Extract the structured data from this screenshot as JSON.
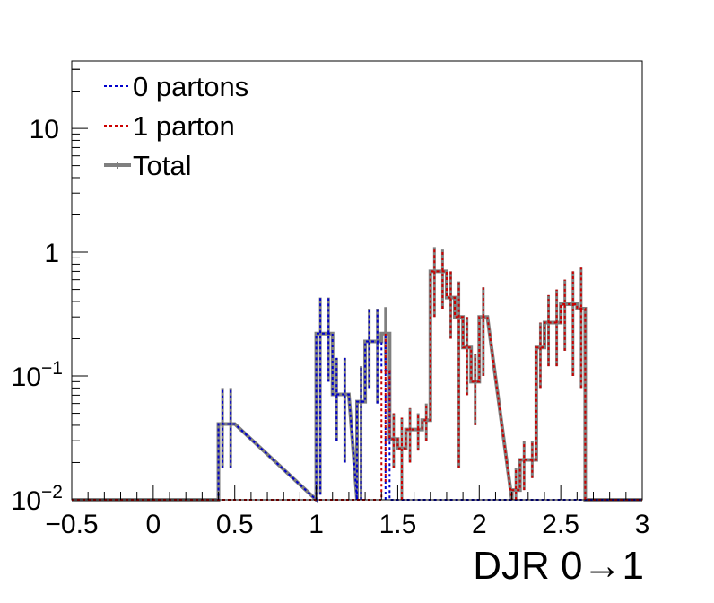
{
  "chart_data": {
    "type": "histogram",
    "xlabel": "DJR 0→1",
    "ylabel": "",
    "xlim": [
      -0.5,
      3.0
    ],
    "ylim": [
      0.01,
      35
    ],
    "yscale": "log",
    "bin_width": 0.05,
    "grid": false,
    "legend_placement": "top-left",
    "x_tick_labels": [
      {
        "value": -0.5,
        "text": "−0.5"
      },
      {
        "value": 0,
        "text": "0"
      },
      {
        "value": 0.5,
        "text": "0.5"
      },
      {
        "value": 1,
        "text": "1"
      },
      {
        "value": 1.5,
        "text": "1.5"
      },
      {
        "value": 2,
        "text": "2"
      },
      {
        "value": 2.5,
        "text": "2.5"
      },
      {
        "value": 3,
        "text": "3"
      }
    ],
    "y_tick_labels": [
      {
        "value": 0.01,
        "base": "10",
        "exp": "−2"
      },
      {
        "value": 0.1,
        "base": "10",
        "exp": "−1"
      },
      {
        "value": 1,
        "base": "1",
        "exp": ""
      },
      {
        "value": 10,
        "base": "10",
        "exp": ""
      }
    ],
    "series": [
      {
        "name": "0 partons",
        "color": "#0000cc",
        "style": "dotted",
        "bins": [
          {
            "x": [
              0.4,
              0.45
            ],
            "y": 0.041,
            "err": [
              0.018,
              0.08
            ]
          },
          {
            "x": [
              0.45,
              0.5
            ],
            "y": 0.041,
            "err": [
              0.018,
              0.08
            ]
          },
          {
            "x": [
              1.0,
              1.05
            ],
            "y": 0.22,
            "err": [
              0.011,
              0.43
            ]
          },
          {
            "x": [
              1.05,
              1.1
            ],
            "y": 0.22,
            "err": [
              0.09,
              0.43
            ]
          },
          {
            "x": [
              1.1,
              1.15
            ],
            "y": 0.071,
            "err": [
              0.03,
              0.14
            ]
          },
          {
            "x": [
              1.15,
              1.2
            ],
            "y": 0.071,
            "err": [
              0.02,
              0.14
            ]
          },
          {
            "x": [
              1.25,
              1.3
            ],
            "y": 0.062,
            "err": [
              0.01,
              0.12
            ]
          },
          {
            "x": [
              1.3,
              1.35
            ],
            "y": 0.19,
            "err": [
              0.08,
              0.35
            ]
          },
          {
            "x": [
              1.35,
              1.4
            ],
            "y": 0.19,
            "err": [
              0.06,
              0.35
            ]
          },
          {
            "x": [
              1.4,
              1.45
            ],
            "y": 0.11,
            "err": [
              0.01,
              0.22
            ]
          }
        ]
      },
      {
        "name": "1 parton",
        "color": "#cc0000",
        "style": "dotted",
        "bins": [
          {
            "x": [
              1.4,
              1.45
            ],
            "y": 0.11,
            "err": [
              0.014,
              0.23
            ]
          },
          {
            "x": [
              1.45,
              1.5
            ],
            "y": 0.031,
            "err": [
              0.018,
              0.05
            ]
          },
          {
            "x": [
              1.5,
              1.55
            ],
            "y": 0.026,
            "err": [
              0.01,
              0.046
            ]
          },
          {
            "x": [
              1.55,
              1.6
            ],
            "y": 0.037,
            "err": [
              0.02,
              0.055
            ]
          },
          {
            "x": [
              1.6,
              1.65
            ],
            "y": 0.037,
            "err": [
              0.025,
              0.05
            ]
          },
          {
            "x": [
              1.65,
              1.7
            ],
            "y": 0.044,
            "err": [
              0.03,
              0.06
            ]
          },
          {
            "x": [
              1.7,
              1.75
            ],
            "y": 0.7,
            "err": [
              0.3,
              1.1
            ]
          },
          {
            "x": [
              1.75,
              1.8
            ],
            "y": 0.7,
            "err": [
              0.35,
              1.05
            ]
          },
          {
            "x": [
              1.8,
              1.85
            ],
            "y": 0.43,
            "err": [
              0.2,
              0.7
            ]
          },
          {
            "x": [
              1.85,
              1.9
            ],
            "y": 0.3,
            "err": [
              0.018,
              0.58
            ]
          },
          {
            "x": [
              1.9,
              1.95
            ],
            "y": 0.17,
            "err": [
              0.07,
              0.3
            ]
          },
          {
            "x": [
              1.95,
              2.0
            ],
            "y": 0.09,
            "err": [
              0.04,
              0.15
            ]
          },
          {
            "x": [
              2.0,
              2.05
            ],
            "y": 0.3,
            "err": [
              0.1,
              0.52
            ]
          },
          {
            "x": [
              2.2,
              2.25
            ],
            "y": 0.012,
            "err": [
              0.008,
              0.018
            ]
          },
          {
            "x": [
              2.25,
              2.3
            ],
            "y": 0.021,
            "err": [
              0.012,
              0.03
            ]
          },
          {
            "x": [
              2.3,
              2.35
            ],
            "y": 0.021,
            "err": [
              0.015,
              0.03
            ]
          },
          {
            "x": [
              2.35,
              2.4
            ],
            "y": 0.17,
            "err": [
              0.08,
              0.27
            ]
          },
          {
            "x": [
              2.4,
              2.45
            ],
            "y": 0.27,
            "err": [
              0.12,
              0.45
            ]
          },
          {
            "x": [
              2.45,
              2.5
            ],
            "y": 0.27,
            "err": [
              0.12,
              0.5
            ]
          },
          {
            "x": [
              2.5,
              2.55
            ],
            "y": 0.38,
            "err": [
              0.16,
              0.6
            ]
          },
          {
            "x": [
              2.55,
              2.6
            ],
            "y": 0.38,
            "err": [
              0.1,
              0.7
            ]
          },
          {
            "x": [
              2.6,
              2.65
            ],
            "y": 0.35,
            "err": [
              0.08,
              0.75
            ]
          }
        ]
      },
      {
        "name": "Total",
        "color": "#7f7f7f",
        "style": "solid",
        "bins": [
          {
            "x": [
              0.4,
              0.45
            ],
            "y": 0.041,
            "err": [
              0.018,
              0.08
            ]
          },
          {
            "x": [
              0.45,
              0.5
            ],
            "y": 0.041,
            "err": [
              0.018,
              0.08
            ]
          },
          {
            "x": [
              1.0,
              1.05
            ],
            "y": 0.22,
            "err": [
              0.011,
              0.43
            ]
          },
          {
            "x": [
              1.05,
              1.1
            ],
            "y": 0.22,
            "err": [
              0.09,
              0.43
            ]
          },
          {
            "x": [
              1.1,
              1.15
            ],
            "y": 0.071,
            "err": [
              0.03,
              0.14
            ]
          },
          {
            "x": [
              1.15,
              1.2
            ],
            "y": 0.071,
            "err": [
              0.02,
              0.14
            ]
          },
          {
            "x": [
              1.25,
              1.3
            ],
            "y": 0.062,
            "err": [
              0.01,
              0.12
            ]
          },
          {
            "x": [
              1.3,
              1.35
            ],
            "y": 0.19,
            "err": [
              0.08,
              0.35
            ]
          },
          {
            "x": [
              1.35,
              1.4
            ],
            "y": 0.19,
            "err": [
              0.06,
              0.35
            ]
          },
          {
            "x": [
              1.4,
              1.45
            ],
            "y": 0.22,
            "err": [
              0.12,
              0.36
            ]
          },
          {
            "x": [
              1.45,
              1.5
            ],
            "y": 0.031,
            "err": [
              0.018,
              0.05
            ]
          },
          {
            "x": [
              1.5,
              1.55
            ],
            "y": 0.026,
            "err": [
              0.01,
              0.046
            ]
          },
          {
            "x": [
              1.55,
              1.6
            ],
            "y": 0.037,
            "err": [
              0.02,
              0.055
            ]
          },
          {
            "x": [
              1.6,
              1.65
            ],
            "y": 0.037,
            "err": [
              0.025,
              0.05
            ]
          },
          {
            "x": [
              1.65,
              1.7
            ],
            "y": 0.044,
            "err": [
              0.03,
              0.06
            ]
          },
          {
            "x": [
              1.7,
              1.75
            ],
            "y": 0.7,
            "err": [
              0.3,
              1.1
            ]
          },
          {
            "x": [
              1.75,
              1.8
            ],
            "y": 0.7,
            "err": [
              0.35,
              1.05
            ]
          },
          {
            "x": [
              1.8,
              1.85
            ],
            "y": 0.43,
            "err": [
              0.2,
              0.7
            ]
          },
          {
            "x": [
              1.85,
              1.9
            ],
            "y": 0.3,
            "err": [
              0.018,
              0.58
            ]
          },
          {
            "x": [
              1.9,
              1.95
            ],
            "y": 0.17,
            "err": [
              0.07,
              0.3
            ]
          },
          {
            "x": [
              1.95,
              2.0
            ],
            "y": 0.09,
            "err": [
              0.04,
              0.15
            ]
          },
          {
            "x": [
              2.0,
              2.05
            ],
            "y": 0.3,
            "err": [
              0.1,
              0.52
            ]
          },
          {
            "x": [
              2.2,
              2.25
            ],
            "y": 0.012,
            "err": [
              0.008,
              0.018
            ]
          },
          {
            "x": [
              2.25,
              2.3
            ],
            "y": 0.021,
            "err": [
              0.012,
              0.03
            ]
          },
          {
            "x": [
              2.3,
              2.35
            ],
            "y": 0.021,
            "err": [
              0.015,
              0.03
            ]
          },
          {
            "x": [
              2.35,
              2.4
            ],
            "y": 0.17,
            "err": [
              0.08,
              0.27
            ]
          },
          {
            "x": [
              2.4,
              2.45
            ],
            "y": 0.27,
            "err": [
              0.12,
              0.45
            ]
          },
          {
            "x": [
              2.45,
              2.5
            ],
            "y": 0.27,
            "err": [
              0.12,
              0.5
            ]
          },
          {
            "x": [
              2.5,
              2.55
            ],
            "y": 0.38,
            "err": [
              0.16,
              0.6
            ]
          },
          {
            "x": [
              2.55,
              2.6
            ],
            "y": 0.38,
            "err": [
              0.1,
              0.7
            ]
          },
          {
            "x": [
              2.6,
              2.65
            ],
            "y": 0.35,
            "err": [
              0.08,
              0.75
            ]
          }
        ]
      }
    ]
  }
}
